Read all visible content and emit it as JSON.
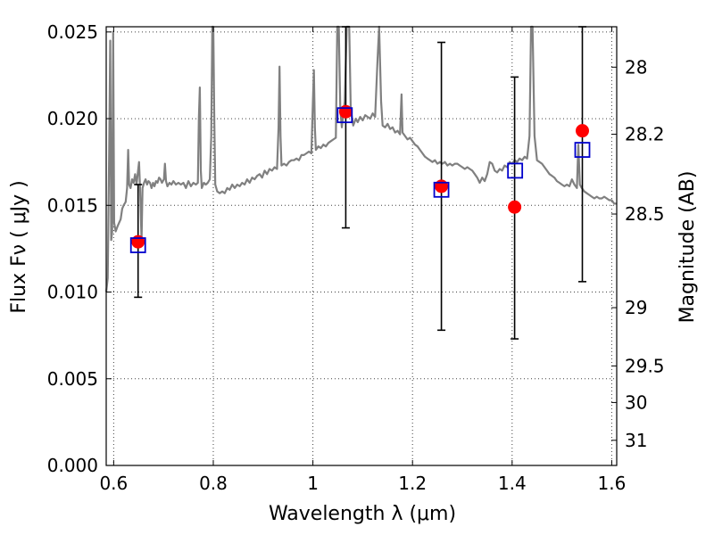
{
  "chart_data": {
    "type": "scatter",
    "xlabel": "Wavelength  λ (μm)",
    "ylabel": "Flux  Fν  ( μJy )",
    "y2label": "Magnitude (AB)",
    "xlim": [
      0.585,
      1.61
    ],
    "ylim": [
      0.0,
      0.0253
    ],
    "grid": true,
    "x_ticks": [
      0.6,
      0.8,
      1.0,
      1.2,
      1.4,
      1.6
    ],
    "x_tick_labels": [
      "0.6",
      "0.8",
      "1",
      "1.2",
      "1.4",
      "1.6"
    ],
    "y_ticks": [
      0.0,
      0.005,
      0.01,
      0.015,
      0.02,
      0.025
    ],
    "y_tick_labels": [
      "0.000",
      "0.005",
      "0.010",
      "0.015",
      "0.020",
      "0.025"
    ],
    "y2_ticks": [
      {
        "flux": 0.02297,
        "label": "28"
      },
      {
        "flux": 0.0191,
        "label": "28.2"
      },
      {
        "flux": 0.0145,
        "label": "28.5"
      },
      {
        "flux": 0.0091,
        "label": "29"
      },
      {
        "flux": 0.00574,
        "label": "29.5"
      },
      {
        "flux": 0.00363,
        "label": "30"
      },
      {
        "flux": 0.00145,
        "label": "31"
      }
    ],
    "colors": {
      "spectrum": "#808080",
      "observed": "#ff0000",
      "model": "#0000cc",
      "errorbar": "#000000"
    },
    "series": [
      {
        "type": "line",
        "points": [
          [
            0.585,
            0.01
          ],
          [
            0.588,
            0.0108
          ],
          [
            0.591,
            0.018
          ],
          [
            0.593,
            0.0245
          ],
          [
            0.595,
            0.013
          ],
          [
            0.597,
            0.0135
          ],
          [
            0.599,
            0.025
          ],
          [
            0.601,
            0.014
          ],
          [
            0.604,
            0.0135
          ],
          [
            0.608,
            0.0138
          ],
          [
            0.611,
            0.014
          ],
          [
            0.614,
            0.0142
          ],
          [
            0.617,
            0.0148
          ],
          [
            0.62,
            0.015
          ],
          [
            0.624,
            0.0152
          ],
          [
            0.627,
            0.016
          ],
          [
            0.629,
            0.0182
          ],
          [
            0.631,
            0.0162
          ],
          [
            0.634,
            0.016
          ],
          [
            0.637,
            0.0165
          ],
          [
            0.64,
            0.0163
          ],
          [
            0.643,
            0.0168
          ],
          [
            0.646,
            0.0162
          ],
          [
            0.649,
            0.017
          ],
          [
            0.651,
            0.0175
          ],
          [
            0.653,
            0.016
          ],
          [
            0.656,
            0.013
          ],
          [
            0.658,
            0.016
          ],
          [
            0.661,
            0.0163
          ],
          [
            0.664,
            0.0165
          ],
          [
            0.667,
            0.0162
          ],
          [
            0.67,
            0.0164
          ],
          [
            0.673,
            0.0163
          ],
          [
            0.676,
            0.016
          ],
          [
            0.679,
            0.0163
          ],
          [
            0.682,
            0.0161
          ],
          [
            0.685,
            0.0164
          ],
          [
            0.688,
            0.0163
          ],
          [
            0.691,
            0.0166
          ],
          [
            0.694,
            0.0165
          ],
          [
            0.697,
            0.0163
          ],
          [
            0.701,
            0.0165
          ],
          [
            0.703,
            0.0174
          ],
          [
            0.705,
            0.0164
          ],
          [
            0.708,
            0.0161
          ],
          [
            0.712,
            0.0163
          ],
          [
            0.716,
            0.0162
          ],
          [
            0.72,
            0.0164
          ],
          [
            0.725,
            0.0162
          ],
          [
            0.73,
            0.0163
          ],
          [
            0.735,
            0.0162
          ],
          [
            0.74,
            0.0163
          ],
          [
            0.745,
            0.016
          ],
          [
            0.75,
            0.0164
          ],
          [
            0.755,
            0.0161
          ],
          [
            0.76,
            0.0163
          ],
          [
            0.765,
            0.0162
          ],
          [
            0.769,
            0.0163
          ],
          [
            0.771,
            0.02
          ],
          [
            0.773,
            0.0218
          ],
          [
            0.775,
            0.017
          ],
          [
            0.777,
            0.016
          ],
          [
            0.781,
            0.0163
          ],
          [
            0.785,
            0.0162
          ],
          [
            0.789,
            0.0163
          ],
          [
            0.793,
            0.0165
          ],
          [
            0.796,
            0.019
          ],
          [
            0.798,
            0.0253
          ],
          [
            0.8,
            0.0253
          ],
          [
            0.802,
            0.02
          ],
          [
            0.804,
            0.0162
          ],
          [
            0.808,
            0.0158
          ],
          [
            0.813,
            0.0157
          ],
          [
            0.818,
            0.0158
          ],
          [
            0.823,
            0.0157
          ],
          [
            0.828,
            0.016
          ],
          [
            0.833,
            0.0159
          ],
          [
            0.838,
            0.0162
          ],
          [
            0.843,
            0.016
          ],
          [
            0.848,
            0.0162
          ],
          [
            0.853,
            0.0161
          ],
          [
            0.858,
            0.0163
          ],
          [
            0.863,
            0.0162
          ],
          [
            0.868,
            0.0165
          ],
          [
            0.873,
            0.0163
          ],
          [
            0.878,
            0.0166
          ],
          [
            0.883,
            0.0165
          ],
          [
            0.888,
            0.0167
          ],
          [
            0.893,
            0.0168
          ],
          [
            0.898,
            0.0166
          ],
          [
            0.903,
            0.017
          ],
          [
            0.908,
            0.0168
          ],
          [
            0.913,
            0.0171
          ],
          [
            0.918,
            0.017
          ],
          [
            0.923,
            0.0172
          ],
          [
            0.928,
            0.0171
          ],
          [
            0.931,
            0.0195
          ],
          [
            0.933,
            0.023
          ],
          [
            0.935,
            0.019
          ],
          [
            0.937,
            0.0173
          ],
          [
            0.942,
            0.0174
          ],
          [
            0.947,
            0.0173
          ],
          [
            0.952,
            0.0175
          ],
          [
            0.957,
            0.0176
          ],
          [
            0.962,
            0.0176
          ],
          [
            0.967,
            0.0177
          ],
          [
            0.972,
            0.0176
          ],
          [
            0.977,
            0.0179
          ],
          [
            0.982,
            0.0179
          ],
          [
            0.987,
            0.018
          ],
          [
            0.992,
            0.0181
          ],
          [
            0.997,
            0.018
          ],
          [
            1.0,
            0.021
          ],
          [
            1.002,
            0.0228
          ],
          [
            1.004,
            0.0195
          ],
          [
            1.006,
            0.0182
          ],
          [
            1.011,
            0.0184
          ],
          [
            1.016,
            0.0183
          ],
          [
            1.021,
            0.0185
          ],
          [
            1.026,
            0.0184
          ],
          [
            1.031,
            0.0186
          ],
          [
            1.036,
            0.0187
          ],
          [
            1.041,
            0.0188
          ],
          [
            1.046,
            0.0189
          ],
          [
            1.049,
            0.0253
          ],
          [
            1.052,
            0.0253
          ],
          [
            1.055,
            0.0205
          ],
          [
            1.058,
            0.0195
          ],
          [
            1.064,
            0.021
          ],
          [
            1.068,
            0.0253
          ],
          [
            1.073,
            0.0253
          ],
          [
            1.076,
            0.0205
          ],
          [
            1.081,
            0.0196
          ],
          [
            1.086,
            0.02
          ],
          [
            1.09,
            0.0198
          ],
          [
            1.095,
            0.0201
          ],
          [
            1.1,
            0.0199
          ],
          [
            1.105,
            0.0202
          ],
          [
            1.11,
            0.0201
          ],
          [
            1.115,
            0.02
          ],
          [
            1.12,
            0.0203
          ],
          [
            1.125,
            0.0201
          ],
          [
            1.13,
            0.0235
          ],
          [
            1.133,
            0.0253
          ],
          [
            1.137,
            0.021
          ],
          [
            1.14,
            0.0196
          ],
          [
            1.145,
            0.0195
          ],
          [
            1.15,
            0.0197
          ],
          [
            1.155,
            0.0194
          ],
          [
            1.16,
            0.0195
          ],
          [
            1.165,
            0.0192
          ],
          [
            1.17,
            0.0193
          ],
          [
            1.175,
            0.0191
          ],
          [
            1.178,
            0.0214
          ],
          [
            1.18,
            0.0192
          ],
          [
            1.185,
            0.019
          ],
          [
            1.19,
            0.0188
          ],
          [
            1.195,
            0.0189
          ],
          [
            1.2,
            0.0187
          ],
          [
            1.205,
            0.0185
          ],
          [
            1.21,
            0.0184
          ],
          [
            1.215,
            0.0182
          ],
          [
            1.22,
            0.018
          ],
          [
            1.225,
            0.0178
          ],
          [
            1.23,
            0.0177
          ],
          [
            1.235,
            0.0176
          ],
          [
            1.24,
            0.0175
          ],
          [
            1.245,
            0.0176
          ],
          [
            1.25,
            0.0174
          ],
          [
            1.255,
            0.0175
          ],
          [
            1.26,
            0.0174
          ],
          [
            1.265,
            0.0175
          ],
          [
            1.27,
            0.0173
          ],
          [
            1.275,
            0.0174
          ],
          [
            1.28,
            0.0173
          ],
          [
            1.285,
            0.0174
          ],
          [
            1.29,
            0.0174
          ],
          [
            1.295,
            0.0173
          ],
          [
            1.3,
            0.0172
          ],
          [
            1.305,
            0.0171
          ],
          [
            1.31,
            0.0172
          ],
          [
            1.315,
            0.0171
          ],
          [
            1.32,
            0.017
          ],
          [
            1.325,
            0.0168
          ],
          [
            1.33,
            0.0166
          ],
          [
            1.335,
            0.0163
          ],
          [
            1.34,
            0.0166
          ],
          [
            1.345,
            0.0164
          ],
          [
            1.35,
            0.0168
          ],
          [
            1.355,
            0.0175
          ],
          [
            1.36,
            0.0174
          ],
          [
            1.365,
            0.017
          ],
          [
            1.37,
            0.0169
          ],
          [
            1.375,
            0.0171
          ],
          [
            1.38,
            0.017
          ],
          [
            1.385,
            0.0173
          ],
          [
            1.39,
            0.0172
          ],
          [
            1.395,
            0.0175
          ],
          [
            1.4,
            0.0174
          ],
          [
            1.405,
            0.0176
          ],
          [
            1.41,
            0.0175
          ],
          [
            1.415,
            0.0177
          ],
          [
            1.42,
            0.0176
          ],
          [
            1.425,
            0.0178
          ],
          [
            1.43,
            0.0177
          ],
          [
            1.435,
            0.019
          ],
          [
            1.438,
            0.0253
          ],
          [
            1.441,
            0.0253
          ],
          [
            1.445,
            0.019
          ],
          [
            1.45,
            0.0176
          ],
          [
            1.455,
            0.0175
          ],
          [
            1.46,
            0.0174
          ],
          [
            1.465,
            0.0172
          ],
          [
            1.47,
            0.017
          ],
          [
            1.475,
            0.0168
          ],
          [
            1.48,
            0.0167
          ],
          [
            1.485,
            0.0166
          ],
          [
            1.49,
            0.0164
          ],
          [
            1.495,
            0.0163
          ],
          [
            1.5,
            0.0162
          ],
          [
            1.505,
            0.0161
          ],
          [
            1.51,
            0.0162
          ],
          [
            1.515,
            0.0161
          ],
          [
            1.52,
            0.0165
          ],
          [
            1.525,
            0.0162
          ],
          [
            1.53,
            0.016
          ],
          [
            1.533,
            0.0185
          ],
          [
            1.536,
            0.0162
          ],
          [
            1.54,
            0.016
          ],
          [
            1.545,
            0.0158
          ],
          [
            1.55,
            0.0157
          ],
          [
            1.555,
            0.0156
          ],
          [
            1.56,
            0.0155
          ],
          [
            1.565,
            0.0154
          ],
          [
            1.57,
            0.0155
          ],
          [
            1.575,
            0.0154
          ],
          [
            1.58,
            0.0154
          ],
          [
            1.585,
            0.0155
          ],
          [
            1.59,
            0.0154
          ],
          [
            1.595,
            0.0153
          ],
          [
            1.6,
            0.0153
          ],
          [
            1.605,
            0.0151
          ],
          [
            1.61,
            0.0151
          ]
        ]
      },
      {
        "type": "scatter",
        "x": [
          0.649,
          1.066,
          1.258,
          1.405,
          1.541
        ],
        "y": [
          0.0129,
          0.0204,
          0.0161,
          0.0149,
          0.0193
        ],
        "yerr_low": [
          0.0097,
          0.0137,
          0.0078,
          0.0073,
          0.0106
        ],
        "yerr_high": [
          0.0162,
          0.0253,
          0.0244,
          0.0224,
          0.0253
        ]
      },
      {
        "type": "scatter",
        "x": [
          0.649,
          1.064,
          1.258,
          1.406,
          1.541
        ],
        "y": [
          0.0127,
          0.0202,
          0.0159,
          0.017,
          0.0182
        ]
      }
    ]
  }
}
